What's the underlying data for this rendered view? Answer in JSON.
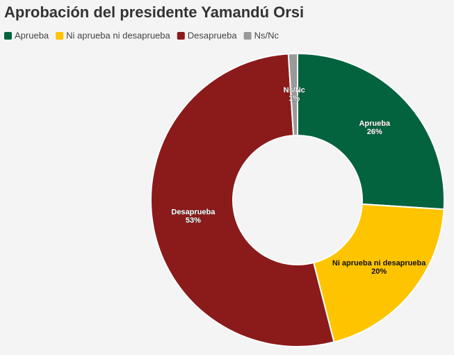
{
  "chart_data": {
    "type": "donut",
    "title": "Aprobación del presidente Yamandú Orsi",
    "categories": [
      "Aprueba",
      "Ni aprueba ni desaprueba",
      "Desaprueba",
      "Ns/Nc"
    ],
    "values": [
      26,
      20,
      53,
      1
    ],
    "value_labels": [
      "26%",
      "20%",
      "53%",
      "1%"
    ],
    "colors": [
      "#03633f",
      "#ffc400",
      "#8b1a1b",
      "#9a9a9a"
    ],
    "legend": "top-left"
  }
}
